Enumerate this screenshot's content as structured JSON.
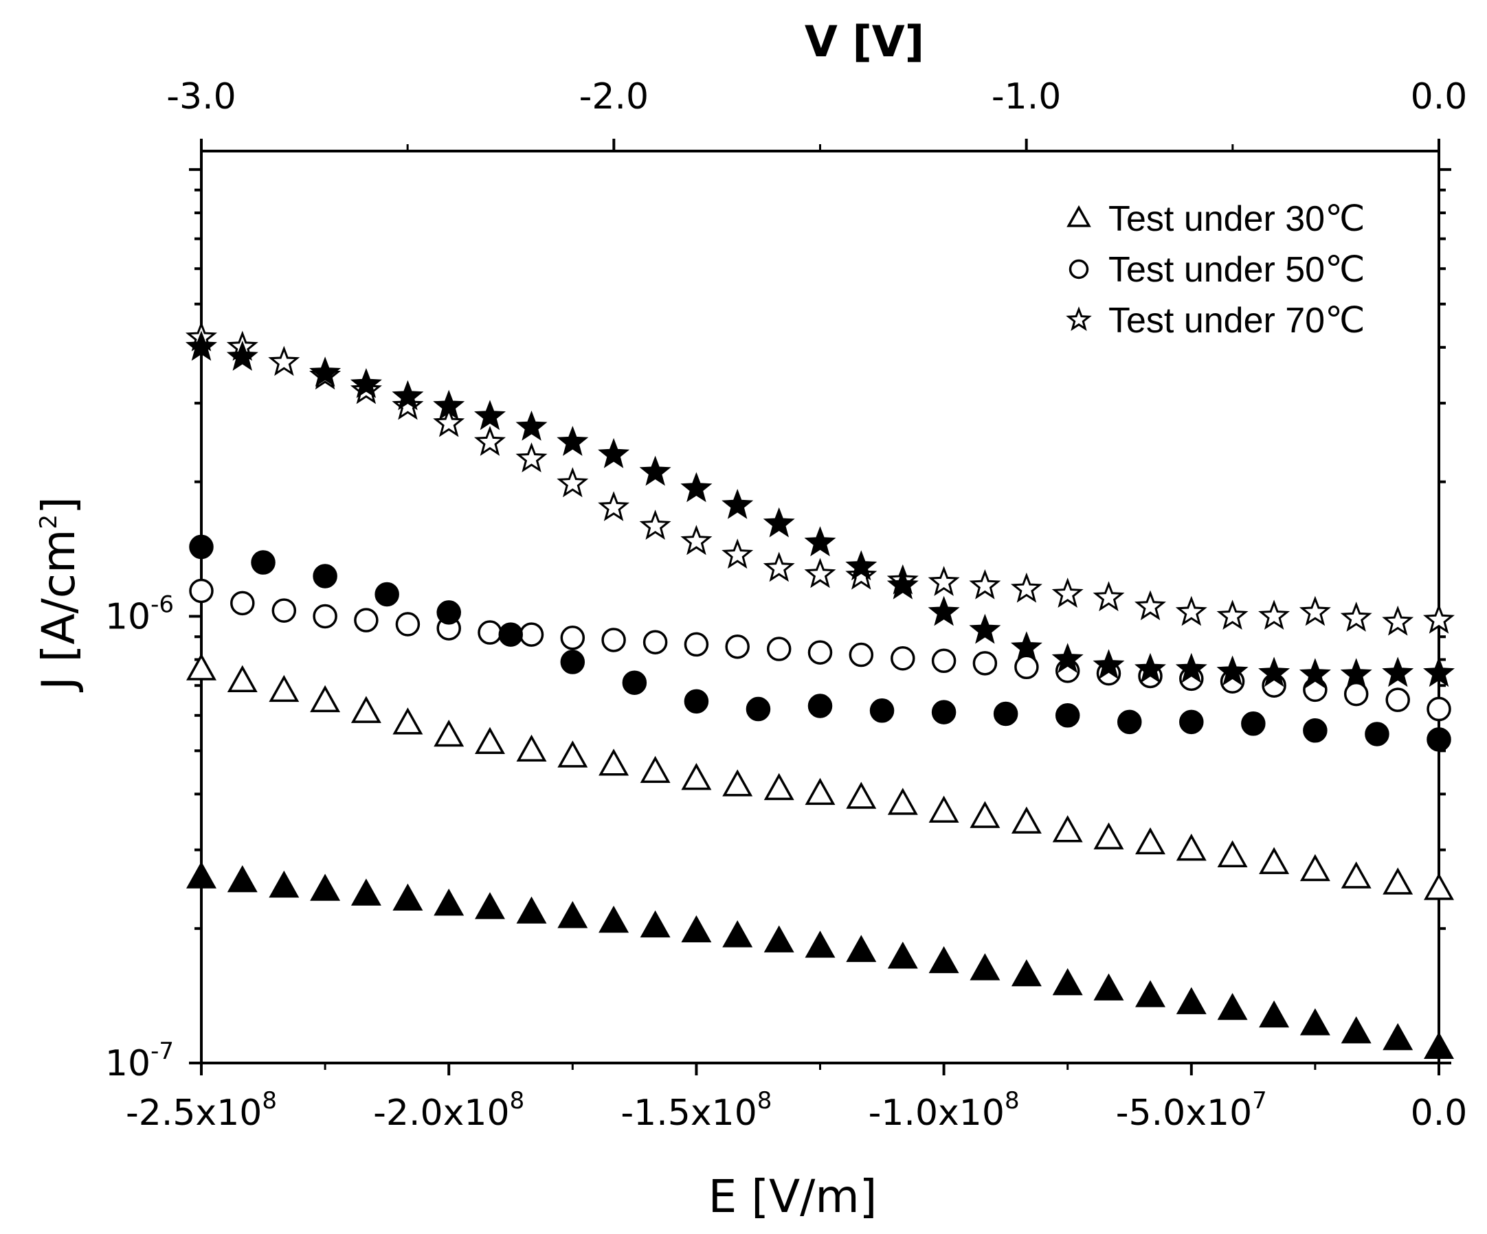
{
  "chart_data": {
    "type": "scatter",
    "x_axis": {
      "label": "E [V/m]",
      "range": [
        -250000000.0,
        0
      ],
      "ticks": [
        {
          "value": -250000000.0,
          "mantissa": "-2.5x10",
          "exp": "8"
        },
        {
          "value": -200000000.0,
          "mantissa": "-2.0x10",
          "exp": "8"
        },
        {
          "value": -150000000.0,
          "mantissa": "-1.5x10",
          "exp": "8"
        },
        {
          "value": -100000000.0,
          "mantissa": "-1.0x10",
          "exp": "8"
        },
        {
          "value": -50000000.0,
          "mantissa": "-5.0x10",
          "exp": "7"
        },
        {
          "value": 0,
          "mantissa": "0.0",
          "exp": ""
        }
      ]
    },
    "top_axis": {
      "label": "V [V]",
      "range": [
        -3.0,
        0.0
      ],
      "ticks": [
        {
          "value": -3.0,
          "label": "-3.0"
        },
        {
          "value": -2.0,
          "label": "-2.0"
        },
        {
          "value": -1.0,
          "label": "-1.0"
        },
        {
          "value": 0.0,
          "label": "0.0"
        }
      ]
    },
    "y_axis": {
      "label_main": "J [A/cm",
      "label_sup": "2",
      "label_end": "]",
      "scale": "log",
      "range": [
        1e-07,
        1.1e-05
      ],
      "ticks": [
        {
          "value": 1e-07,
          "base": "10",
          "exp": "-7"
        },
        {
          "value": 1e-06,
          "base": "10",
          "exp": "-6"
        }
      ]
    },
    "legend": {
      "position": "top-right",
      "entries": [
        {
          "marker": "triangle",
          "label": "Test under 30℃"
        },
        {
          "marker": "circle",
          "label": "Test under 50℃"
        },
        {
          "marker": "star",
          "label": "Test under 70℃"
        }
      ]
    },
    "series": [
      {
        "name": "30C open",
        "marker": "triangle",
        "filled": false,
        "x": [
          -250000000.0,
          -241700000.0,
          -233300000.0,
          -225000000.0,
          -216700000.0,
          -208300000.0,
          -200000000.0,
          -191700000.0,
          -183300000.0,
          -175000000.0,
          -166700000.0,
          -158300000.0,
          -150000000.0,
          -141700000.0,
          -133300000.0,
          -125000000.0,
          -116700000.0,
          -108300000.0,
          -100000000.0,
          -91700000.0,
          -83300000.0,
          -75000000.0,
          -66700000.0,
          -58300000.0,
          -50000000.0,
          -41700000.0,
          -33300000.0,
          -25000000.0,
          -16700000.0,
          -8300000.0,
          0
        ],
        "y": [
          7.6e-07,
          7.15e-07,
          6.8e-07,
          6.45e-07,
          6.1e-07,
          5.75e-07,
          5.4e-07,
          5.2e-07,
          5e-07,
          4.85e-07,
          4.65e-07,
          4.48e-07,
          4.32e-07,
          4.18e-07,
          4.1e-07,
          4e-07,
          3.92e-07,
          3.8e-07,
          3.65e-07,
          3.55e-07,
          3.45e-07,
          3.3e-07,
          3.18e-07,
          3.1e-07,
          3e-07,
          2.9e-07,
          2.8e-07,
          2.7e-07,
          2.6e-07,
          2.52e-07,
          2.45e-07
        ]
      },
      {
        "name": "30C filled",
        "marker": "triangle",
        "filled": true,
        "x": [
          -250000000.0,
          -241700000.0,
          -233300000.0,
          -225000000.0,
          -216700000.0,
          -208300000.0,
          -200000000.0,
          -191700000.0,
          -183300000.0,
          -175000000.0,
          -166700000.0,
          -158300000.0,
          -150000000.0,
          -141700000.0,
          -133300000.0,
          -125000000.0,
          -116700000.0,
          -108300000.0,
          -100000000.0,
          -91700000.0,
          -83300000.0,
          -75000000.0,
          -66700000.0,
          -58300000.0,
          -50000000.0,
          -41700000.0,
          -33300000.0,
          -25000000.0,
          -16700000.0,
          -8300000.0,
          0
        ],
        "y": [
          2.6e-07,
          2.55e-07,
          2.48e-07,
          2.44e-07,
          2.38e-07,
          2.32e-07,
          2.26e-07,
          2.22e-07,
          2.17e-07,
          2.12e-07,
          2.07e-07,
          2.02e-07,
          1.97e-07,
          1.92e-07,
          1.87e-07,
          1.82e-07,
          1.78e-07,
          1.72e-07,
          1.68e-07,
          1.62e-07,
          1.57e-07,
          1.5e-07,
          1.46e-07,
          1.41e-07,
          1.36e-07,
          1.32e-07,
          1.27e-07,
          1.22e-07,
          1.17e-07,
          1.13e-07,
          1.08e-07
        ]
      },
      {
        "name": "50C open",
        "marker": "circle",
        "filled": false,
        "x": [
          -250000000.0,
          -241700000.0,
          -233300000.0,
          -225000000.0,
          -216700000.0,
          -208300000.0,
          -200000000.0,
          -191700000.0,
          -183300000.0,
          -175000000.0,
          -166700000.0,
          -158300000.0,
          -150000000.0,
          -141700000.0,
          -133300000.0,
          -125000000.0,
          -116700000.0,
          -108300000.0,
          -100000000.0,
          -91700000.0,
          -83300000.0,
          -75000000.0,
          -66700000.0,
          -58300000.0,
          -50000000.0,
          -41700000.0,
          -33300000.0,
          -25000000.0,
          -16700000.0,
          -8300000.0,
          0
        ],
        "y": [
          1.14e-06,
          1.07e-06,
          1.03e-06,
          1e-06,
          9.8e-07,
          9.6e-07,
          9.4e-07,
          9.2e-07,
          9.1e-07,
          8.95e-07,
          8.85e-07,
          8.75e-07,
          8.65e-07,
          8.55e-07,
          8.45e-07,
          8.3e-07,
          8.2e-07,
          8.05e-07,
          7.95e-07,
          7.85e-07,
          7.7e-07,
          7.55e-07,
          7.45e-07,
          7.35e-07,
          7.25e-07,
          7.15e-07,
          7e-07,
          6.85e-07,
          6.7e-07,
          6.5e-07,
          6.2e-07
        ]
      },
      {
        "name": "50C filled",
        "marker": "circle",
        "filled": true,
        "x": [
          -250000000.0,
          -237500000.0,
          -225000000.0,
          -212500000.0,
          -200000000.0,
          -187500000.0,
          -175000000.0,
          -162500000.0,
          -150000000.0,
          -137500000.0,
          -125000000.0,
          -112500000.0,
          -100000000.0,
          -87500000.0,
          -75000000.0,
          -62500000.0,
          -50000000.0,
          -37500000.0,
          -25000000.0,
          -12500000.0,
          0
        ],
        "y": [
          1.43e-06,
          1.32e-06,
          1.23e-06,
          1.12e-06,
          1.02e-06,
          9.1e-07,
          7.9e-07,
          7.1e-07,
          6.45e-07,
          6.2e-07,
          6.3e-07,
          6.15e-07,
          6.1e-07,
          6.05e-07,
          6e-07,
          5.8e-07,
          5.8e-07,
          5.75e-07,
          5.55e-07,
          5.45e-07,
          5.3e-07
        ]
      },
      {
        "name": "70C open",
        "marker": "star",
        "filled": false,
        "x": [
          -250000000.0,
          -241700000.0,
          -233300000.0,
          -225000000.0,
          -216700000.0,
          -208300000.0,
          -200000000.0,
          -191700000.0,
          -183300000.0,
          -175000000.0,
          -166700000.0,
          -158300000.0,
          -150000000.0,
          -141700000.0,
          -133300000.0,
          -125000000.0,
          -116700000.0,
          -108300000.0,
          -100000000.0,
          -91700000.0,
          -83300000.0,
          -75000000.0,
          -66700000.0,
          -58300000.0,
          -50000000.0,
          -41700000.0,
          -33300000.0,
          -25000000.0,
          -16700000.0,
          -8300000.0,
          0
        ],
        "y": [
          4.2e-06,
          4e-06,
          3.7e-06,
          3.45e-06,
          3.2e-06,
          2.95e-06,
          2.7e-06,
          2.45e-06,
          2.25e-06,
          1.98e-06,
          1.75e-06,
          1.59e-06,
          1.47e-06,
          1.37e-06,
          1.28e-06,
          1.24e-06,
          1.23e-06,
          1.2e-06,
          1.19e-06,
          1.17e-06,
          1.15e-06,
          1.12e-06,
          1.1e-06,
          1.05e-06,
          1.02e-06,
          1e-06,
          1e-06,
          1.02e-06,
          9.9e-07,
          9.7e-07,
          9.8e-07
        ]
      },
      {
        "name": "70C filled",
        "marker": "star",
        "filled": true,
        "x": [
          -250000000.0,
          -241700000.0,
          -225000000.0,
          -216700000.0,
          -208300000.0,
          -200000000.0,
          -191700000.0,
          -183300000.0,
          -175000000.0,
          -166700000.0,
          -158300000.0,
          -150000000.0,
          -141700000.0,
          -133300000.0,
          -125000000.0,
          -116700000.0,
          -108300000.0,
          -100000000.0,
          -91700000.0,
          -83300000.0,
          -75000000.0,
          -66700000.0,
          -58300000.0,
          -50000000.0,
          -41700000.0,
          -33300000.0,
          -25000000.0,
          -16700000.0,
          -8300000.0,
          0
        ],
        "y": [
          4e-06,
          3.8e-06,
          3.5e-06,
          3.3e-06,
          3.1e-06,
          2.95e-06,
          2.8e-06,
          2.65e-06,
          2.45e-06,
          2.3e-06,
          2.1e-06,
          1.93e-06,
          1.77e-06,
          1.61e-06,
          1.46e-06,
          1.29e-06,
          1.17e-06,
          1.02e-06,
          9.3e-07,
          8.5e-07,
          8e-07,
          7.75e-07,
          7.6e-07,
          7.6e-07,
          7.5e-07,
          7.45e-07,
          7.4e-07,
          7.4e-07,
          7.45e-07,
          7.45e-07
        ]
      }
    ]
  }
}
